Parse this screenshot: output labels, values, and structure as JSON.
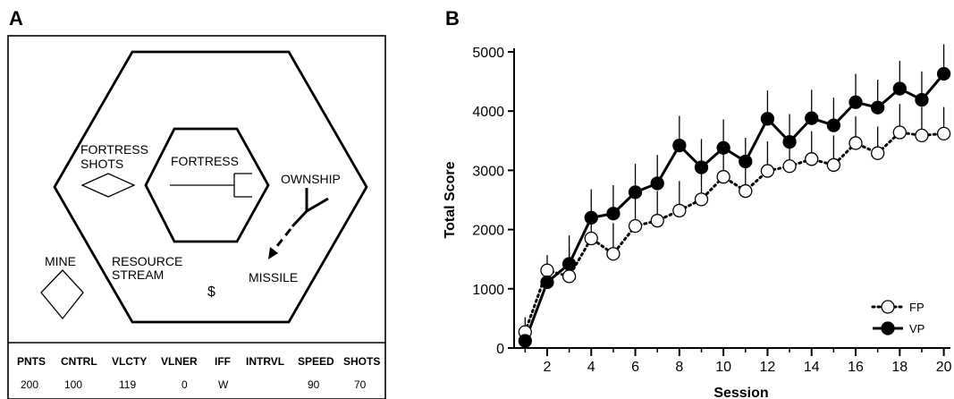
{
  "panel_a": {
    "letter": "A",
    "labels": {
      "fortress_shots_line1": "FORTRESS",
      "fortress_shots_line2": "SHOTS",
      "fortress": "FORTRESS",
      "ownship": "OWNSHIP",
      "mine": "MINE",
      "resource_stream_line1": "RESOURCE",
      "resource_stream_line2": "STREAM",
      "resource_symbol": "$",
      "missile": "MISSILE"
    },
    "hud": {
      "headers": [
        "PNTS",
        "CNTRL",
        "VLCTY",
        "VLNER",
        "IFF",
        "INTRVL",
        "SPEED",
        "SHOTS"
      ],
      "values": [
        "200",
        "100",
        "119",
        "0",
        "W",
        "",
        "90",
        "70"
      ]
    }
  },
  "chart_data": {
    "type": "line",
    "panel_letter": "B",
    "xlabel": "Session",
    "ylabel": "Total Score",
    "xlim": [
      0.5,
      20.3
    ],
    "ylim": [
      0,
      5000
    ],
    "xticks": [
      2,
      4,
      6,
      8,
      10,
      12,
      14,
      16,
      18,
      20
    ],
    "yticks": [
      0,
      1000,
      2000,
      3000,
      4000,
      5000
    ],
    "grid": false,
    "legend": "bottom-right",
    "x": [
      1,
      2,
      3,
      4,
      5,
      6,
      7,
      8,
      9,
      10,
      11,
      12,
      13,
      14,
      15,
      16,
      17,
      18,
      19,
      20
    ],
    "series": [
      {
        "name": "FP",
        "style": "dotted",
        "marker": "open-circle",
        "values": [
          270,
          1310,
          1210,
          1850,
          1590,
          2060,
          2150,
          2320,
          2510,
          2890,
          2650,
          2990,
          3070,
          3190,
          3090,
          3460,
          3290,
          3640,
          3590,
          3620
        ],
        "errors": [
          250,
          260,
          500,
          480,
          520,
          520,
          500,
          500,
          500,
          480,
          450,
          500,
          500,
          470,
          500,
          450,
          450,
          480,
          480,
          450
        ]
      },
      {
        "name": "VP",
        "style": "solid",
        "marker": "filled-circle",
        "values": [
          120,
          1110,
          1420,
          2200,
          2270,
          2630,
          2780,
          3420,
          3050,
          3380,
          3150,
          3870,
          3480,
          3880,
          3760,
          4150,
          4060,
          4380,
          4190,
          4630
        ],
        "errors": [
          0,
          0,
          480,
          480,
          480,
          480,
          480,
          500,
          480,
          480,
          400,
          480,
          470,
          480,
          470,
          480,
          470,
          470,
          480,
          500
        ]
      }
    ],
    "colors": {
      "fp_fill": "#ffffff",
      "vp_fill": "#000000",
      "line": "#000000"
    }
  }
}
